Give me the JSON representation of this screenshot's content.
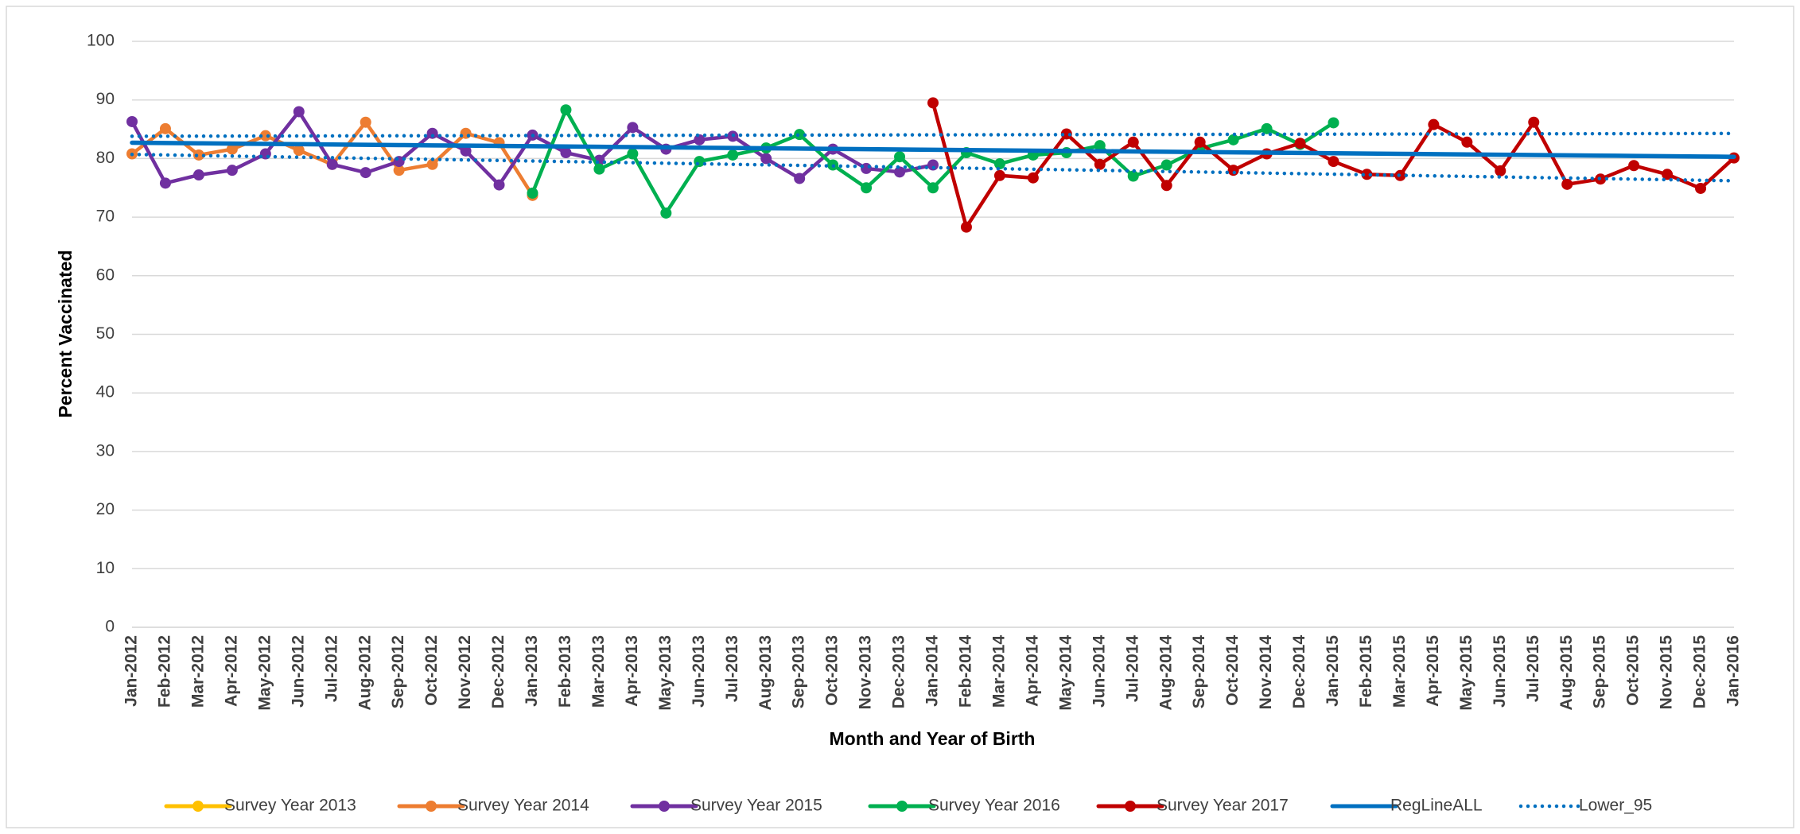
{
  "chart_data": {
    "type": "line",
    "x_label": "Month and Year of Birth",
    "y_label": "Percent Vaccinated",
    "categories": [
      "Jan-2012",
      "Feb-2012",
      "Mar-2012",
      "Apr-2012",
      "May-2012",
      "Jun-2012",
      "Jul-2012",
      "Aug-2012",
      "Sep-2012",
      "Oct-2012",
      "Nov-2012",
      "Dec-2012",
      "Jan-2013",
      "Feb-2013",
      "Mar-2013",
      "Apr-2013",
      "May-2013",
      "Jun-2013",
      "Jul-2013",
      "Aug-2013",
      "Sep-2013",
      "Oct-2013",
      "Nov-2013",
      "Dec-2013",
      "Jan-2014",
      "Feb-2014",
      "Mar-2014",
      "Apr-2014",
      "May-2014",
      "Jun-2014",
      "Jul-2014",
      "Aug-2014",
      "Sep-2014",
      "Oct-2014",
      "Nov-2014",
      "Dec-2014",
      "Jan-2015",
      "Feb-2015",
      "Mar-2015",
      "Apr-2015",
      "May-2015",
      "Jun-2015",
      "Jul-2015",
      "Aug-2015",
      "Sep-2015",
      "Oct-2015",
      "Nov-2015",
      "Dec-2015",
      "Jan-2016"
    ],
    "ylim": [
      0,
      100
    ],
    "yticks": [
      0,
      10,
      20,
      30,
      40,
      50,
      60,
      70,
      80,
      90,
      100
    ],
    "grid": true,
    "legend": "bottom",
    "series": [
      {
        "name": "Survey Year 2013",
        "color": "#ffc000",
        "style": "solid",
        "markers": true,
        "values": [
          null,
          null,
          null,
          null,
          null,
          null,
          null,
          null,
          null,
          null,
          null,
          null,
          null,
          null,
          null,
          null,
          null,
          null,
          null,
          null,
          null,
          null,
          null,
          null,
          null,
          null,
          null,
          null,
          null,
          null,
          null,
          null,
          null,
          null,
          null,
          null,
          null,
          null,
          null,
          null,
          null,
          null,
          null,
          null,
          null,
          null,
          null,
          null,
          null
        ]
      },
      {
        "name": "Survey Year 2014",
        "color": "#ed7d31",
        "style": "solid",
        "markers": true,
        "values": [
          80.8,
          85.1,
          80.6,
          81.6,
          83.9,
          81.4,
          79,
          86.2,
          78,
          79,
          84.3,
          82.7,
          73.7,
          null,
          null,
          null,
          null,
          null,
          null,
          null,
          null,
          null,
          null,
          null,
          null,
          null,
          null,
          null,
          null,
          null,
          null,
          null,
          null,
          null,
          null,
          null,
          null,
          null,
          null,
          null,
          null,
          null,
          null,
          null,
          null,
          null,
          null,
          null,
          null
        ]
      },
      {
        "name": "Survey Year 2015",
        "color": "#7030a0",
        "style": "solid",
        "markers": true,
        "values": [
          86.3,
          75.8,
          77.2,
          78,
          80.8,
          88,
          79,
          77.6,
          79.5,
          84.3,
          81.3,
          75.5,
          84,
          81,
          79.7,
          85.3,
          81.6,
          83.2,
          83.8,
          80,
          76.6,
          81.6,
          78.3,
          77.7,
          78.9,
          null,
          null,
          null,
          null,
          null,
          null,
          null,
          null,
          null,
          null,
          null,
          null,
          null,
          null,
          null,
          null,
          null,
          null,
          null,
          null,
          null,
          null,
          null,
          null
        ]
      },
      {
        "name": "Survey Year 2016",
        "color": "#00b050",
        "style": "solid",
        "markers": true,
        "values": [
          null,
          null,
          null,
          null,
          null,
          null,
          null,
          null,
          null,
          null,
          null,
          null,
          74.1,
          88.3,
          78.2,
          80.8,
          70.7,
          79.5,
          80.6,
          81.8,
          84.1,
          78.9,
          75,
          80.3,
          75,
          81,
          79.1,
          80.6,
          81,
          82.2,
          77,
          78.9,
          81.7,
          83.2,
          85.1,
          82.4,
          86.1,
          null,
          null,
          null,
          null,
          null,
          null,
          null,
          null,
          null,
          null,
          null,
          null
        ]
      },
      {
        "name": "Survey Year 2017",
        "color": "#c00000",
        "style": "solid",
        "markers": true,
        "values": [
          null,
          null,
          null,
          null,
          null,
          null,
          null,
          null,
          null,
          null,
          null,
          null,
          null,
          null,
          null,
          null,
          null,
          null,
          null,
          null,
          null,
          null,
          null,
          null,
          89.5,
          68.3,
          77.1,
          76.7,
          84.2,
          79,
          82.8,
          75.4,
          82.8,
          78,
          80.8,
          82.6,
          79.5,
          77.3,
          77.1,
          85.8,
          82.8,
          77.9,
          86.2,
          75.6,
          76.5,
          78.8,
          77.3,
          74.9,
          80.1
        ]
      },
      {
        "name": "RegLineALL",
        "color": "#0070c0",
        "style": "solid",
        "markers": false,
        "values": [
          82.7,
          82.65,
          82.6,
          82.55,
          82.5,
          82.45,
          82.4,
          82.35,
          82.3,
          82.25,
          82.2,
          82.15,
          82.1,
          82.05,
          82.0,
          81.95,
          81.9,
          81.85,
          81.8,
          81.75,
          81.7,
          81.65,
          81.6,
          81.55,
          81.5,
          81.45,
          81.4,
          81.35,
          81.3,
          81.25,
          81.2,
          81.15,
          81.1,
          81.05,
          81.0,
          80.95,
          80.9,
          80.85,
          80.8,
          80.75,
          80.7,
          80.65,
          80.6,
          80.55,
          80.5,
          80.45,
          80.4,
          80.35,
          80.3
        ]
      },
      {
        "name": "Lower_95",
        "color": "#0070c0",
        "style": "dotted",
        "markers": false,
        "values": [
          80.7,
          80.61,
          80.51,
          80.42,
          80.33,
          80.23,
          80.14,
          80.04,
          79.95,
          79.86,
          79.76,
          79.67,
          79.58,
          79.48,
          79.39,
          79.29,
          79.2,
          79.11,
          79.01,
          78.92,
          78.83,
          78.73,
          78.64,
          78.54,
          78.45,
          78.36,
          78.26,
          78.17,
          78.08,
          77.98,
          77.89,
          77.79,
          77.7,
          77.61,
          77.51,
          77.42,
          77.33,
          77.23,
          77.14,
          77.04,
          76.95,
          76.86,
          76.76,
          76.67,
          76.58,
          76.48,
          76.39,
          76.29,
          76.2
        ]
      },
      {
        "color": "#0070c0",
        "style": "dotted",
        "markers": false,
        "values": [
          83.8,
          83.81,
          83.82,
          83.83,
          83.84,
          83.85,
          83.86,
          83.87,
          83.88,
          83.89,
          83.9,
          83.91,
          83.92,
          83.93,
          83.94,
          83.95,
          83.96,
          83.97,
          83.98,
          83.99,
          84.0,
          84.01,
          84.02,
          84.03,
          84.04,
          84.05,
          84.06,
          84.07,
          84.08,
          84.09,
          84.1,
          84.11,
          84.12,
          84.13,
          84.14,
          84.15,
          84.16,
          84.17,
          84.18,
          84.19,
          84.2,
          84.21,
          84.22,
          84.23,
          84.24,
          84.25,
          84.26,
          84.27,
          84.28
        ]
      }
    ]
  }
}
